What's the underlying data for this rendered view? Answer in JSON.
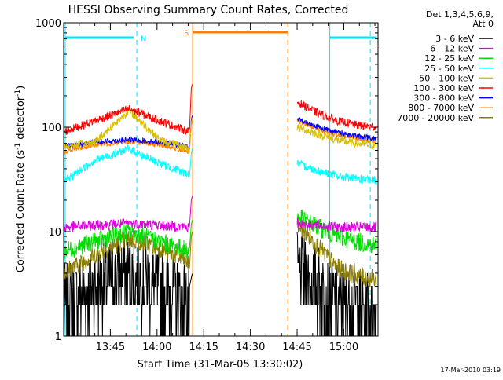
{
  "chart_data": {
    "type": "line",
    "title": "HESSI Observing Summary Count Rates, Corrected",
    "xlabel": "Start Time (31-Mar-05 13:30:02)",
    "ylabel": "Corrected Count Rate (s⁻¹ detector⁻¹)",
    "ylabel_parts": [
      "Corrected Count Rate (s",
      "-1",
      " detector",
      "-1",
      ")"
    ],
    "y_scale": "log",
    "ylim": [
      1,
      1000
    ],
    "xlim_minutes": [
      0,
      101
    ],
    "yticks": [
      "1",
      "10",
      "100",
      "1000"
    ],
    "xticks": [
      {
        "minute": 15,
        "label": "13:45"
      },
      {
        "minute": 30,
        "label": "14:00"
      },
      {
        "minute": 45,
        "label": "14:15"
      },
      {
        "minute": 60,
        "label": "14:30"
      },
      {
        "minute": 75,
        "label": "14:45"
      },
      {
        "minute": 90,
        "label": "15:00"
      }
    ],
    "legend_header": [
      "Det 1,3,4,5,6,9,",
      "Att 0"
    ],
    "legend_position": "right",
    "series": [
      {
        "name": "3 - 6 keV",
        "color": "#000000",
        "pre": [
          2.0,
          3.0,
          4.0,
          3.0,
          2.0
        ],
        "post": [
          4.0,
          3.0,
          2.0,
          2.0,
          1.5
        ],
        "noise": 0.45
      },
      {
        "name": "6 - 12 keV",
        "color": "#e000e0",
        "pre": [
          11.0,
          11.5,
          12.0,
          11.5,
          11.0
        ],
        "post": [
          12.0,
          11.5,
          11.0,
          11.0,
          11.0
        ],
        "noise": 0.05
      },
      {
        "name": "12 - 25 keV",
        "color": "#00dd00",
        "pre": [
          6.5,
          8.0,
          10.0,
          8.0,
          6.5
        ],
        "post": [
          14.0,
          11.0,
          9.0,
          8.0,
          7.5
        ],
        "noise": 0.09
      },
      {
        "name": "25 - 50 keV",
        "color": "#00ffff",
        "pre": [
          30.0,
          48.0,
          62.0,
          45.0,
          35.0
        ],
        "post": [
          45.0,
          38.0,
          34.0,
          32.0,
          31.0
        ],
        "noise": 0.04
      },
      {
        "name": "50 - 100 keV",
        "color": "#d8c000",
        "pre": [
          65.0,
          72.0,
          145.0,
          75.0,
          62.0
        ],
        "post": [
          100.0,
          85.0,
          75.0,
          70.0,
          67.0
        ],
        "noise": 0.04
      },
      {
        "name": "100 - 300 keV",
        "color": "#ff0000",
        "pre": [
          90.0,
          115.0,
          150.0,
          115.0,
          90.0
        ],
        "post": [
          175.0,
          135.0,
          115.0,
          105.0,
          100.0
        ],
        "noise": 0.04
      },
      {
        "name": "300 - 800 keV",
        "color": "#0000ff",
        "pre": [
          65.0,
          72.0,
          76.0,
          72.0,
          65.0
        ],
        "post": [
          120.0,
          100.0,
          90.0,
          82.0,
          78.0
        ],
        "noise": 0.025
      },
      {
        "name": "800 - 7000 keV",
        "color": "#ff8000",
        "pre": [
          58.0,
          68.0,
          73.0,
          68.0,
          58.0
        ],
        "post": [
          115.0,
          95.0,
          85.0,
          78.0,
          74.0
        ],
        "noise": 0.025
      },
      {
        "name": "7000 - 20000 keV",
        "color": "#8b7d00",
        "pre": [
          4.0,
          6.0,
          8.5,
          7.0,
          5.0
        ],
        "post": [
          12.0,
          7.0,
          4.5,
          3.8,
          3.5
        ],
        "noise": 0.09
      }
    ],
    "markers": [
      {
        "label": "N",
        "color": "#00e0ff",
        "shade_min": [
          0.5,
          23.5
        ],
        "right_bar_min": [
          85.5,
          101
        ],
        "dashed_at_min": [
          23.5,
          98.5
        ],
        "solid_at_min": [
          0.5,
          85.5
        ]
      },
      {
        "label": "S",
        "color": "#ff8000",
        "bar_min": [
          41.5,
          72.0
        ],
        "solid_at_min": [
          41.5
        ],
        "dashed_at_min": [
          72.0
        ]
      }
    ],
    "gap_min": [
      41.5,
      72.0
    ],
    "timestamp": "17-Mar-2010 03:19"
  }
}
